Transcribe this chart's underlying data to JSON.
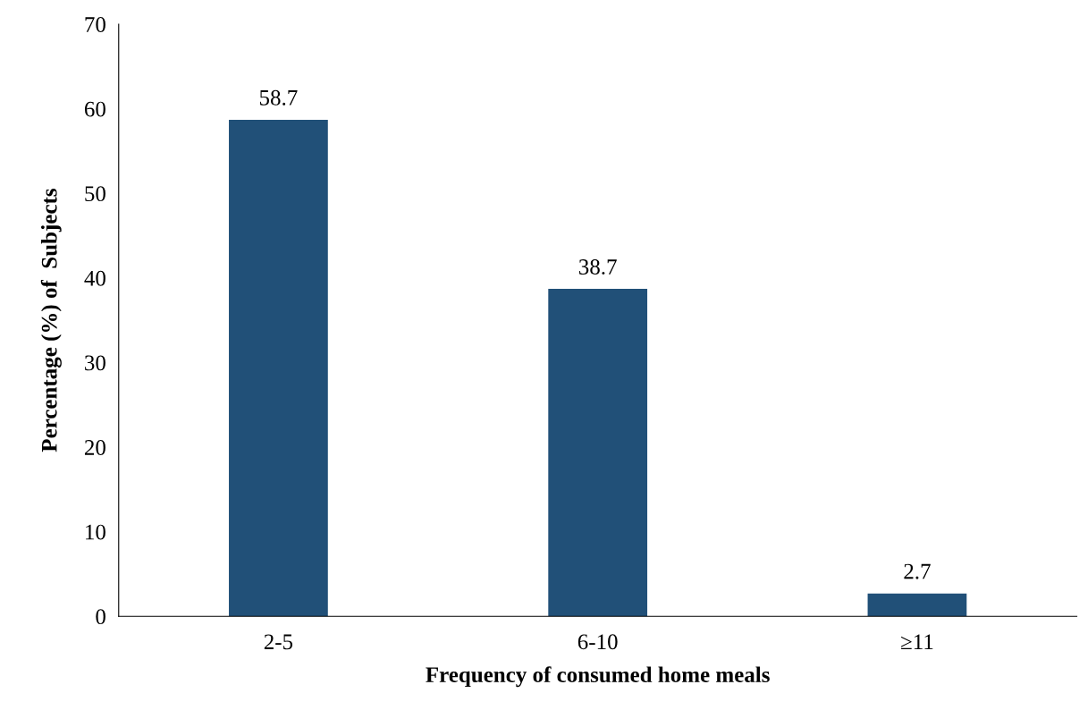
{
  "chart_data": {
    "type": "bar",
    "xlabel": "Frequency of consumed home meals",
    "ylabel": "Percentage (%) of  Subjects",
    "categories": [
      "2-5",
      "6-10",
      "≥11"
    ],
    "values": [
      58.7,
      38.7,
      2.7
    ],
    "color": "#215078",
    "ylim": [
      0,
      70
    ],
    "yticks": [
      0,
      10,
      20,
      30,
      40,
      50,
      60,
      70
    ],
    "grid": false,
    "data_labels": true
  }
}
